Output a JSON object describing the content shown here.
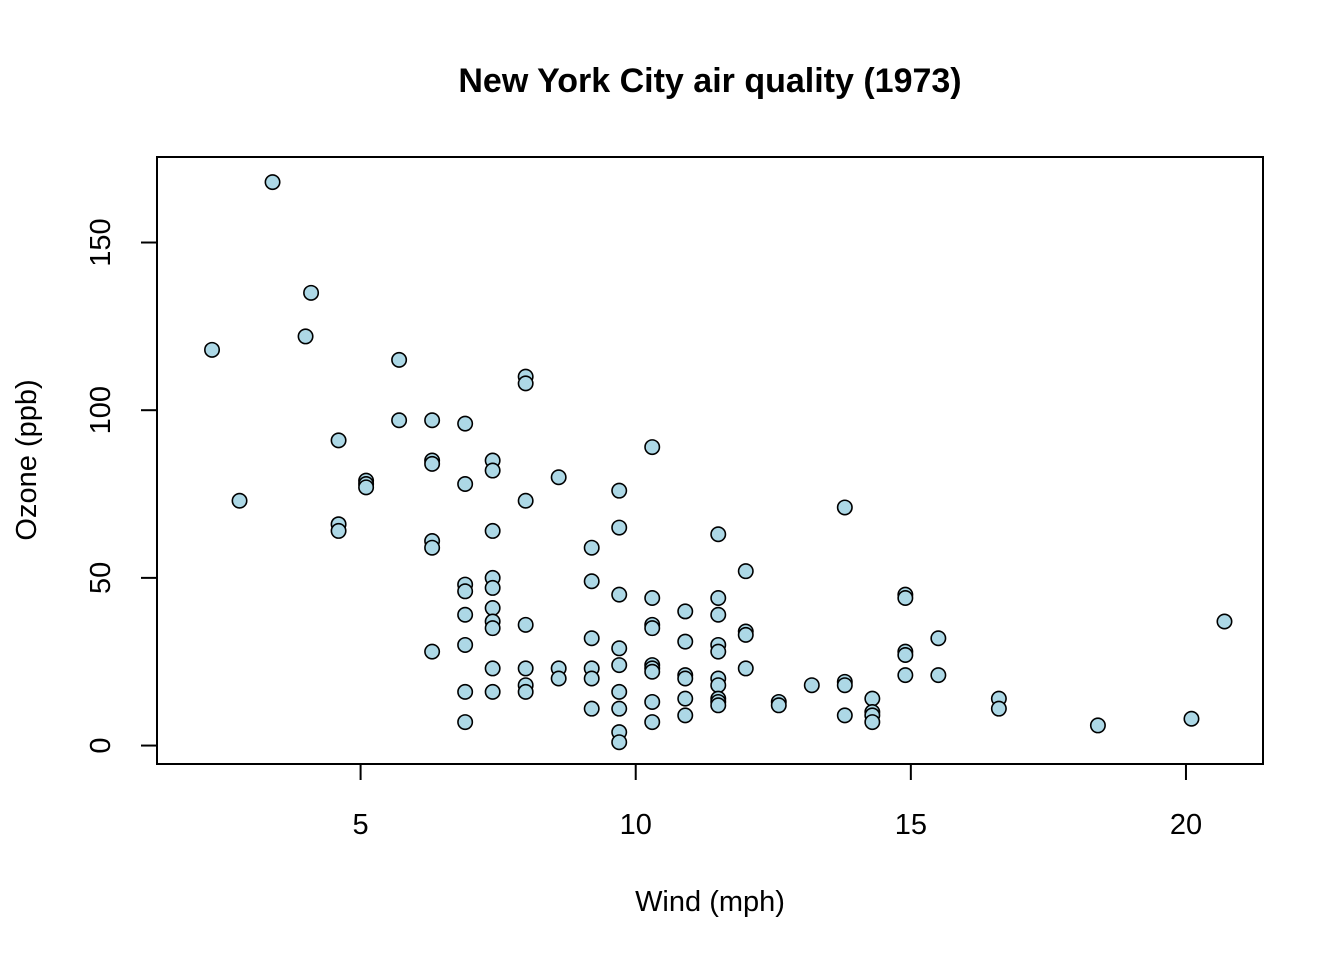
{
  "chart_data": {
    "type": "scatter",
    "title": "New York City air quality (1973)",
    "xlabel": "Wind (mph)",
    "ylabel": "Ozone (ppb)",
    "xlim": [
      1.3,
      21.4
    ],
    "ylim": [
      -5.5,
      175.5
    ],
    "xticks": [
      5,
      10,
      15,
      20
    ],
    "yticks": [
      0,
      50,
      100,
      150
    ],
    "grid": false,
    "legend": "none",
    "point_fill": "#add8e6",
    "point_stroke": "#000000",
    "points": [
      {
        "x": 2.3,
        "y": 118
      },
      {
        "x": 2.8,
        "y": 73
      },
      {
        "x": 3.4,
        "y": 168
      },
      {
        "x": 4.0,
        "y": 122
      },
      {
        "x": 4.1,
        "y": 135
      },
      {
        "x": 4.6,
        "y": 91
      },
      {
        "x": 4.6,
        "y": 66
      },
      {
        "x": 4.6,
        "y": 64
      },
      {
        "x": 5.1,
        "y": 79
      },
      {
        "x": 5.1,
        "y": 78
      },
      {
        "x": 5.1,
        "y": 77
      },
      {
        "x": 5.7,
        "y": 115
      },
      {
        "x": 5.7,
        "y": 97
      },
      {
        "x": 6.3,
        "y": 97
      },
      {
        "x": 6.3,
        "y": 85
      },
      {
        "x": 6.3,
        "y": 84
      },
      {
        "x": 6.3,
        "y": 61
      },
      {
        "x": 6.3,
        "y": 59
      },
      {
        "x": 6.3,
        "y": 28
      },
      {
        "x": 6.9,
        "y": 96
      },
      {
        "x": 6.9,
        "y": 78
      },
      {
        "x": 6.9,
        "y": 48
      },
      {
        "x": 6.9,
        "y": 46
      },
      {
        "x": 6.9,
        "y": 39
      },
      {
        "x": 6.9,
        "y": 30
      },
      {
        "x": 6.9,
        "y": 16
      },
      {
        "x": 6.9,
        "y": 7
      },
      {
        "x": 7.4,
        "y": 85
      },
      {
        "x": 7.4,
        "y": 82
      },
      {
        "x": 7.4,
        "y": 64
      },
      {
        "x": 7.4,
        "y": 50
      },
      {
        "x": 7.4,
        "y": 47
      },
      {
        "x": 7.4,
        "y": 41
      },
      {
        "x": 7.4,
        "y": 37
      },
      {
        "x": 7.4,
        "y": 35
      },
      {
        "x": 7.4,
        "y": 23
      },
      {
        "x": 7.4,
        "y": 16
      },
      {
        "x": 8.0,
        "y": 110
      },
      {
        "x": 8.0,
        "y": 108
      },
      {
        "x": 8.0,
        "y": 73
      },
      {
        "x": 8.0,
        "y": 36
      },
      {
        "x": 8.0,
        "y": 23
      },
      {
        "x": 8.0,
        "y": 18
      },
      {
        "x": 8.0,
        "y": 16
      },
      {
        "x": 8.6,
        "y": 80
      },
      {
        "x": 8.6,
        "y": 23
      },
      {
        "x": 8.6,
        "y": 20
      },
      {
        "x": 9.2,
        "y": 59
      },
      {
        "x": 9.2,
        "y": 49
      },
      {
        "x": 9.2,
        "y": 32
      },
      {
        "x": 9.2,
        "y": 23
      },
      {
        "x": 9.2,
        "y": 20
      },
      {
        "x": 9.2,
        "y": 11
      },
      {
        "x": 9.7,
        "y": 76
      },
      {
        "x": 9.7,
        "y": 65
      },
      {
        "x": 9.7,
        "y": 45
      },
      {
        "x": 9.7,
        "y": 29
      },
      {
        "x": 9.7,
        "y": 24
      },
      {
        "x": 9.7,
        "y": 16
      },
      {
        "x": 9.7,
        "y": 11
      },
      {
        "x": 9.7,
        "y": 4
      },
      {
        "x": 9.7,
        "y": 1
      },
      {
        "x": 10.3,
        "y": 89
      },
      {
        "x": 10.3,
        "y": 44
      },
      {
        "x": 10.3,
        "y": 36
      },
      {
        "x": 10.3,
        "y": 35
      },
      {
        "x": 10.3,
        "y": 24
      },
      {
        "x": 10.3,
        "y": 23
      },
      {
        "x": 10.3,
        "y": 22
      },
      {
        "x": 10.3,
        "y": 13
      },
      {
        "x": 10.3,
        "y": 7
      },
      {
        "x": 10.9,
        "y": 40
      },
      {
        "x": 10.9,
        "y": 31
      },
      {
        "x": 10.9,
        "y": 21
      },
      {
        "x": 10.9,
        "y": 20
      },
      {
        "x": 10.9,
        "y": 14
      },
      {
        "x": 10.9,
        "y": 9
      },
      {
        "x": 11.5,
        "y": 63
      },
      {
        "x": 11.5,
        "y": 44
      },
      {
        "x": 11.5,
        "y": 39
      },
      {
        "x": 11.5,
        "y": 30
      },
      {
        "x": 11.5,
        "y": 28
      },
      {
        "x": 11.5,
        "y": 20
      },
      {
        "x": 11.5,
        "y": 18
      },
      {
        "x": 11.5,
        "y": 14
      },
      {
        "x": 11.5,
        "y": 13
      },
      {
        "x": 11.5,
        "y": 12
      },
      {
        "x": 12.0,
        "y": 52
      },
      {
        "x": 12.0,
        "y": 34
      },
      {
        "x": 12.0,
        "y": 33
      },
      {
        "x": 12.0,
        "y": 23
      },
      {
        "x": 12.6,
        "y": 13
      },
      {
        "x": 12.6,
        "y": 12
      },
      {
        "x": 13.2,
        "y": 18
      },
      {
        "x": 13.8,
        "y": 71
      },
      {
        "x": 13.8,
        "y": 19
      },
      {
        "x": 13.8,
        "y": 18
      },
      {
        "x": 13.8,
        "y": 9
      },
      {
        "x": 14.3,
        "y": 14
      },
      {
        "x": 14.3,
        "y": 10
      },
      {
        "x": 14.3,
        "y": 9
      },
      {
        "x": 14.3,
        "y": 7
      },
      {
        "x": 14.9,
        "y": 45
      },
      {
        "x": 14.9,
        "y": 44
      },
      {
        "x": 14.9,
        "y": 28
      },
      {
        "x": 14.9,
        "y": 27
      },
      {
        "x": 14.9,
        "y": 21
      },
      {
        "x": 15.5,
        "y": 32
      },
      {
        "x": 15.5,
        "y": 21
      },
      {
        "x": 16.6,
        "y": 14
      },
      {
        "x": 16.6,
        "y": 11
      },
      {
        "x": 18.4,
        "y": 6
      },
      {
        "x": 20.1,
        "y": 8
      },
      {
        "x": 20.7,
        "y": 37
      }
    ]
  }
}
